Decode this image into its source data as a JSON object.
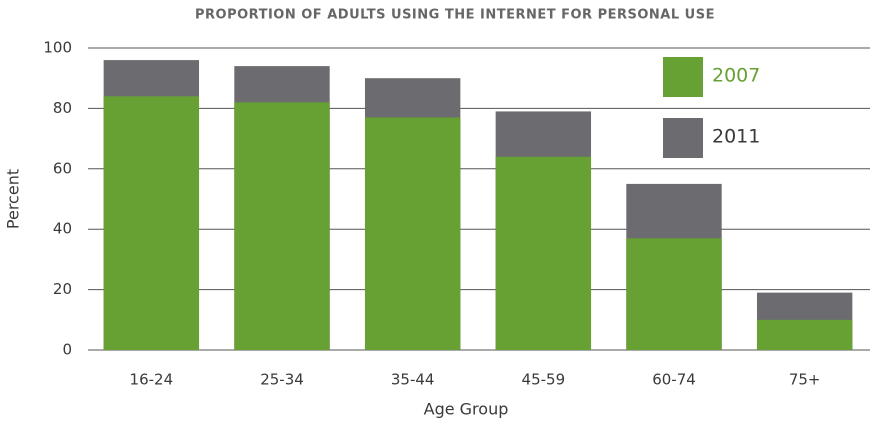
{
  "chart_data": {
    "type": "bar",
    "title": "PROPORTION OF ADULTS USING THE INTERNET FOR PERSONAL USE",
    "x_label": "Age Group",
    "y_label": "Percent",
    "categories": [
      "16-24",
      "25-34",
      "35-44",
      "45-59",
      "60-74",
      "75+"
    ],
    "series": [
      {
        "name": "2007",
        "color": "#67a033",
        "values": [
          84,
          82,
          77,
          64,
          37,
          10
        ]
      },
      {
        "name": "2011",
        "color": "#6c6c70",
        "values": [
          96,
          94,
          90,
          79,
          55,
          19
        ]
      }
    ],
    "ylim": [
      0,
      100
    ],
    "yticks": [
      0,
      20,
      40,
      60,
      80,
      100
    ],
    "grid": true
  }
}
